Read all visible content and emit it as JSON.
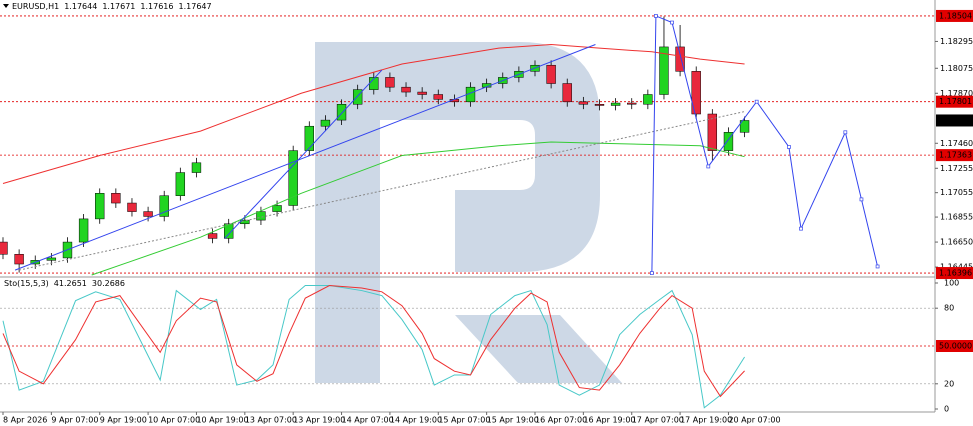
{
  "chart_data": [
    {
      "type": "candlestick",
      "title": "EURUSD,H1",
      "ohlc": [
        1.17644,
        1.17671,
        1.17616,
        1.17647
      ],
      "up_color": "#21d421",
      "down_color": "#e8283c",
      "x": [
        0,
        4,
        8,
        12,
        16,
        20,
        24,
        28,
        32,
        36,
        40,
        44,
        48,
        52,
        56,
        60,
        64,
        68,
        72,
        76,
        80,
        84,
        88,
        92,
        96,
        100,
        104,
        108,
        112,
        116,
        120,
        124,
        128,
        132,
        136,
        140,
        144,
        148,
        152,
        156,
        160,
        164,
        168,
        172,
        176,
        180,
        184
      ],
      "open": [
        1.1665,
        1.1655,
        1.1647,
        1.165,
        1.1652,
        1.1665,
        1.1684,
        1.1705,
        1.1697,
        1.169,
        1.1686,
        1.1703,
        1.1722,
        1.1672,
        1.1668,
        1.168,
        1.1683,
        1.169,
        1.1695,
        1.174,
        1.176,
        1.1765,
        1.1778,
        1.179,
        1.18,
        1.1792,
        1.1788,
        1.1786,
        1.1782,
        1.178,
        1.1792,
        1.1795,
        1.18,
        1.1805,
        1.181,
        1.1795,
        1.178,
        1.1778,
        1.1777,
        1.1779,
        1.1778,
        1.1786,
        1.1825,
        1.1805,
        1.177,
        1.174,
        1.1755
      ],
      "high": [
        1.1669,
        1.1659,
        1.1654,
        1.1656,
        1.1669,
        1.1688,
        1.1709,
        1.1709,
        1.1701,
        1.1694,
        1.1707,
        1.1726,
        1.1734,
        1.1676,
        1.1684,
        1.1687,
        1.1694,
        1.1699,
        1.1744,
        1.1764,
        1.1769,
        1.1782,
        1.1794,
        1.1804,
        1.1804,
        1.1796,
        1.1792,
        1.179,
        1.1786,
        1.1796,
        1.1799,
        1.1804,
        1.1809,
        1.1814,
        1.1814,
        1.1799,
        1.1784,
        1.1782,
        1.1783,
        1.1783,
        1.179,
        1.185,
        1.1843,
        1.1809,
        1.1774,
        1.1759,
        1.1768
      ],
      "low": [
        1.1651,
        1.164,
        1.1643,
        1.1646,
        1.1648,
        1.1661,
        1.168,
        1.1693,
        1.1686,
        1.1682,
        1.1682,
        1.1699,
        1.1718,
        1.1664,
        1.1664,
        1.1676,
        1.1679,
        1.1686,
        1.1691,
        1.1736,
        1.1756,
        1.1761,
        1.1774,
        1.1786,
        1.1788,
        1.1784,
        1.1782,
        1.1778,
        1.1776,
        1.1776,
        1.1788,
        1.1791,
        1.1796,
        1.1801,
        1.1791,
        1.1776,
        1.1774,
        1.1773,
        1.1773,
        1.1774,
        1.1774,
        1.1782,
        1.1801,
        1.1766,
        1.1732,
        1.1736,
        1.1751
      ],
      "close": [
        1.1655,
        1.1647,
        1.165,
        1.1652,
        1.1665,
        1.1684,
        1.1705,
        1.1697,
        1.169,
        1.1686,
        1.1703,
        1.1722,
        1.173,
        1.1668,
        1.168,
        1.1683,
        1.169,
        1.1695,
        1.174,
        1.176,
        1.1765,
        1.1778,
        1.179,
        1.18,
        1.1792,
        1.1788,
        1.1786,
        1.1782,
        1.178,
        1.1792,
        1.1795,
        1.18,
        1.1805,
        1.181,
        1.1795,
        1.178,
        1.1778,
        1.1777,
        1.1779,
        1.1778,
        1.1786,
        1.1825,
        1.1805,
        1.177,
        1.174,
        1.1755,
        1.17647
      ],
      "lines": [
        {
          "color": "#ee3030",
          "style": "solid",
          "x": [
            0,
            24,
            49,
            74,
            99,
            123,
            136,
            148,
            161,
            173,
            184
          ],
          "values": [
            1.1713,
            1.1736,
            1.1756,
            1.1787,
            1.1811,
            1.1824,
            1.1827,
            1.1824,
            1.1821,
            1.1815,
            1.1811
          ]
        },
        {
          "color": "#33cc33",
          "style": "solid",
          "x": [
            22,
            49,
            74,
            99,
            123,
            136,
            148,
            173,
            184
          ],
          "values": [
            1.1638,
            1.1669,
            1.1705,
            1.1736,
            1.1744,
            1.1747,
            1.1746,
            1.1744,
            1.1735
          ]
        },
        {
          "color": "#888888",
          "style": "dotted",
          "x": [
            4,
            184
          ],
          "values": [
            1.1642,
            1.1772
          ]
        },
        {
          "color": "#3344ee",
          "style": "solid",
          "x": [
            3,
            147
          ],
          "values": [
            1.1642,
            1.1827
          ]
        },
        {
          "color": "#3344ee",
          "style": "solid",
          "x": [
            55,
            74,
            94
          ],
          "values": [
            1.1668,
            1.1735,
            1.1806
          ]
        },
        {
          "color": "#3344ee",
          "style": "solid",
          "x": [
            161,
            162,
            166,
            175,
            187,
            195,
            198,
            209,
            213,
            217
          ],
          "values": [
            1.16396,
            1.18504,
            1.1845,
            1.1727,
            1.17801,
            1.1743,
            1.1676,
            1.1755,
            1.17,
            1.1645
          ]
        }
      ],
      "levels": [
        1.18504,
        1.17801,
        1.17363,
        1.16396
      ],
      "level_color": "#e00000",
      "xlim": [
        0,
        231
      ],
      "ylim": [
        1.1638,
        1.1852
      ],
      "yticks": [
        1.18295,
        1.18075,
        {
          "value": 1.1787,
          "label": "1.17870"
        },
        {
          "value": 1.1746,
          "label": "1.17460"
        },
        1.17255,
        1.17055,
        1.16855,
        {
          "value": 1.1665,
          "label": "1.16650"
        },
        1.16445
      ],
      "xticks": [
        {
          "value": 0,
          "label": "8 Apr 2026"
        },
        {
          "value": 12,
          "label": "9 Apr 07:00"
        },
        {
          "value": 24,
          "label": "9 Apr 19:00"
        },
        {
          "value": 36,
          "label": "10 Apr 07:00"
        },
        {
          "value": 48,
          "label": "10 Apr 19:00"
        },
        {
          "value": 60,
          "label": "13 Apr 07:00"
        },
        {
          "value": 72,
          "label": "13 Apr 19:00"
        },
        {
          "value": 84,
          "label": "14 Apr 07:00"
        },
        {
          "value": 96,
          "label": "14 Apr 19:00"
        },
        {
          "value": 108,
          "label": "15 Apr 07:00"
        },
        {
          "value": 120,
          "label": "15 Apr 19:00"
        },
        {
          "value": 132,
          "label": "16 Apr 07:00"
        },
        {
          "value": 144,
          "label": "16 Apr 19:00"
        },
        {
          "value": 156,
          "label": "17 Apr 07:00"
        },
        {
          "value": 168,
          "label": "17 Apr 19:00"
        },
        {
          "value": 180,
          "label": "20 Apr 07:00"
        }
      ]
    },
    {
      "type": "line",
      "title": "Sto(15,5,3)",
      "xlim": [
        0,
        231
      ],
      "ylim": [
        0,
        100
      ],
      "yticks": [
        100,
        80,
        20,
        0
      ],
      "grid": true,
      "levels": [
        {
          "value": 50,
          "label": "50.0000",
          "color": "#e00000"
        }
      ],
      "x": [
        0,
        4,
        10,
        18,
        23,
        29,
        39,
        43,
        49,
        53,
        58,
        63,
        67,
        71,
        75,
        81,
        89,
        94,
        99,
        104,
        107,
        112,
        116,
        121,
        127,
        131,
        135,
        138,
        143,
        148,
        153,
        158,
        163,
        166,
        171,
        174,
        178,
        184
      ],
      "series": [
        {
          "color": "#48c8c8",
          "values": [
            70,
            15,
            22,
            86,
            93,
            87,
            23,
            94,
            79,
            87,
            19,
            23,
            35,
            87,
            98,
            98,
            94,
            90,
            71,
            47,
            19,
            27,
            27,
            75,
            90,
            94,
            67,
            19,
            11,
            19,
            59,
            75,
            87,
            94,
            59,
            1,
            11,
            41.2651
          ]
        },
        {
          "color": "#ee3030",
          "values": [
            60,
            30,
            20,
            55,
            85,
            90,
            45,
            70,
            88,
            85,
            35,
            22,
            28,
            60,
            88,
            98,
            96,
            93,
            82,
            60,
            40,
            30,
            27,
            55,
            80,
            92,
            85,
            45,
            17,
            15,
            35,
            60,
            80,
            90,
            80,
            30,
            10,
            30.2686
          ]
        }
      ]
    }
  ]
}
